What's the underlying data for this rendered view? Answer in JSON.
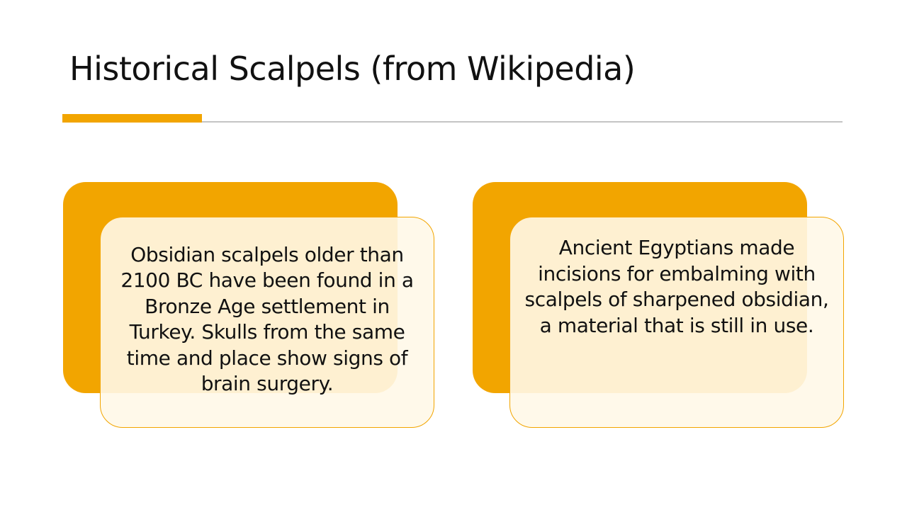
{
  "slide": {
    "title": "Historical Scalpels (from Wikipedia)",
    "cards": [
      {
        "text": "Obsidian scalpels older than 2100 BC have been found in a Bronze Age settlement in Turkey. Skulls from the same time and place show signs of brain surgery."
      },
      {
        "text": "Ancient Egyptians made incisions for embalming with scalpels of sharpened obsidian, a material that is still in use."
      }
    ]
  },
  "colors": {
    "accent": "#f2a500",
    "rule": "#c4c4c4",
    "card_fill": "#fff8e8",
    "text": "#111111",
    "background": "#ffffff"
  }
}
